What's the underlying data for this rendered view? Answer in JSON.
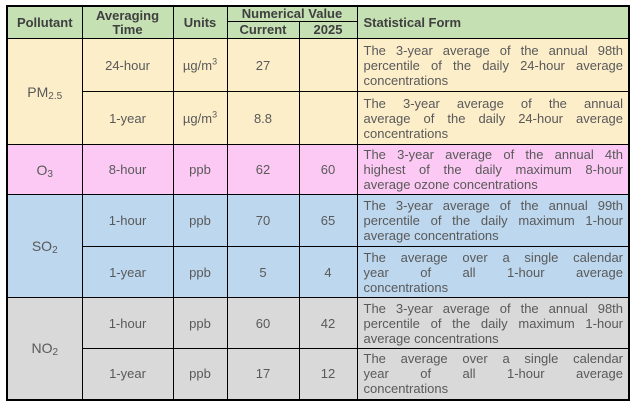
{
  "table": {
    "header": {
      "pollutant": "Pollutant",
      "averaging_time": "Averaging Time",
      "units": "Units",
      "numerical_value": "Numerical Value",
      "current": "Current",
      "year_2025": "2025",
      "statistical_form": "Statistical Form"
    },
    "groups": [
      {
        "pollutant": {
          "base": "PM",
          "sub": "2.5"
        },
        "bg": "#fdeeca",
        "rows": [
          {
            "time": "24-hour",
            "units": {
              "base": "µg/m",
              "sup": "3"
            },
            "current": "27",
            "value_2025": "",
            "form": "The 3-year average of the annual 98th percentile of the daily 24-hour average concentrations",
            "form_lines": [
              "The 3-year average of the annual 98th",
              "percentile of the daily 24-hour average",
              "concentrations"
            ]
          },
          {
            "time": "1-year",
            "units": {
              "base": "µg/m",
              "sup": "3"
            },
            "current": "8.8",
            "value_2025": "",
            "form": "The 3-year average of the annual average of the daily 24-hour average concentrations",
            "form_lines": [
              "The 3-year average of the annual",
              "average of the daily 24-hour average",
              "concentrations"
            ]
          }
        ]
      },
      {
        "pollutant": {
          "base": "O",
          "sub": "3"
        },
        "bg": "#fcc9f4",
        "rows": [
          {
            "time": "8-hour",
            "units": {
              "base": "ppb",
              "sup": ""
            },
            "current": "62",
            "value_2025": "60",
            "form": "The 3-year average of the annual 4th highest of the daily maximum 8-hour average ozone concentrations",
            "form_lines": [
              "The 3-year average of the annual 4th",
              "highest of the daily maximum 8-hour",
              "average ozone concentrations"
            ]
          }
        ]
      },
      {
        "pollutant": {
          "base": "SO",
          "sub": "2"
        },
        "bg": "#bdd7ee",
        "rows": [
          {
            "time": "1-hour",
            "units": {
              "base": "ppb",
              "sup": ""
            },
            "current": "70",
            "value_2025": "65",
            "form": "The 3-year average of the annual 99th percentile of the daily maximum 1-hour average concentrations",
            "form_lines": [
              "The 3-year average of the annual 99th",
              "percentile of the daily maximum 1-hour",
              "average concentrations"
            ]
          },
          {
            "time": "1-year",
            "units": {
              "base": "ppb",
              "sup": ""
            },
            "current": "5",
            "value_2025": "4",
            "form": "The average over a single calendar year of all 1-hour average concentrations",
            "form_lines": [
              "The average over a single calendar",
              "year of all 1-hour average",
              "concentrations"
            ]
          }
        ]
      },
      {
        "pollutant": {
          "base": "NO",
          "sub": "2"
        },
        "bg": "#d9d9d9",
        "rows": [
          {
            "time": "1-hour",
            "units": {
              "base": "ppb",
              "sup": ""
            },
            "current": "60",
            "value_2025": "42",
            "form": "The 3-year average of the annual 98th percentile of the daily maximum 1-hour average concentrations",
            "form_lines": [
              "The 3-year average of the annual 98th",
              "percentile of the daily maximum 1-hour",
              "average concentrations"
            ]
          },
          {
            "time": "1-year",
            "units": {
              "base": "ppb",
              "sup": ""
            },
            "current": "17",
            "value_2025": "12",
            "form": "The average over a single calendar year of all 1-hour average concentrations",
            "form_lines": [
              "The average over a single calendar",
              "year of all 1-hour average",
              "concentrations"
            ]
          }
        ]
      }
    ]
  },
  "colors": {
    "header_bg": "#c5e0b3",
    "pm25_bg": "#fdeeca",
    "o3_bg": "#fcc9f4",
    "so2_bg": "#bdd7ee",
    "no2_bg": "#d9d9d9",
    "border": "#000000",
    "body_text": "#595959",
    "header_text": "#3f3f3f"
  }
}
